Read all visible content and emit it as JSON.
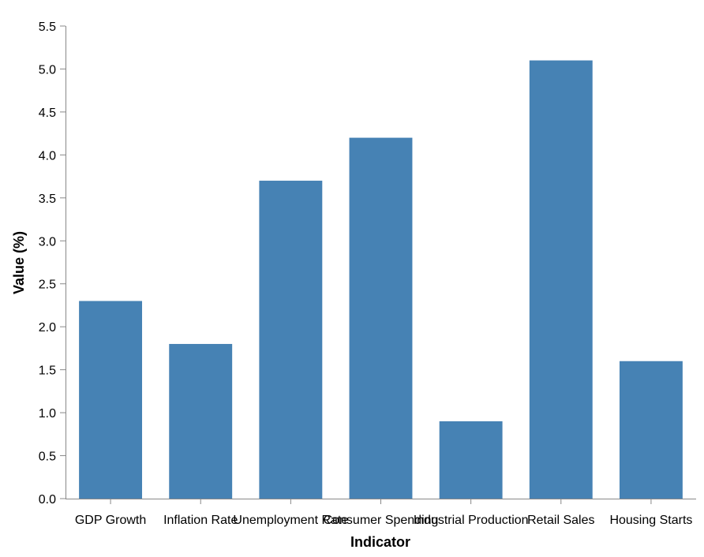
{
  "chart_data": {
    "type": "bar",
    "categories": [
      "GDP Growth",
      "Inflation Rate",
      "Unemployment Rate",
      "Consumer Spending",
      "Industrial Production",
      "Retail Sales",
      "Housing Starts"
    ],
    "values": [
      2.3,
      1.8,
      3.7,
      4.2,
      0.9,
      5.1,
      1.6
    ],
    "xlabel": "Indicator",
    "ylabel": "Value (%)",
    "ylim": [
      0,
      5.5
    ],
    "yticks": [
      "0.0",
      "0.5",
      "1.0",
      "1.5",
      "2.0",
      "2.5",
      "3.0",
      "3.5",
      "4.0",
      "4.5",
      "5.0",
      "5.5"
    ],
    "grid": false,
    "bar_color": "#4682b4"
  }
}
